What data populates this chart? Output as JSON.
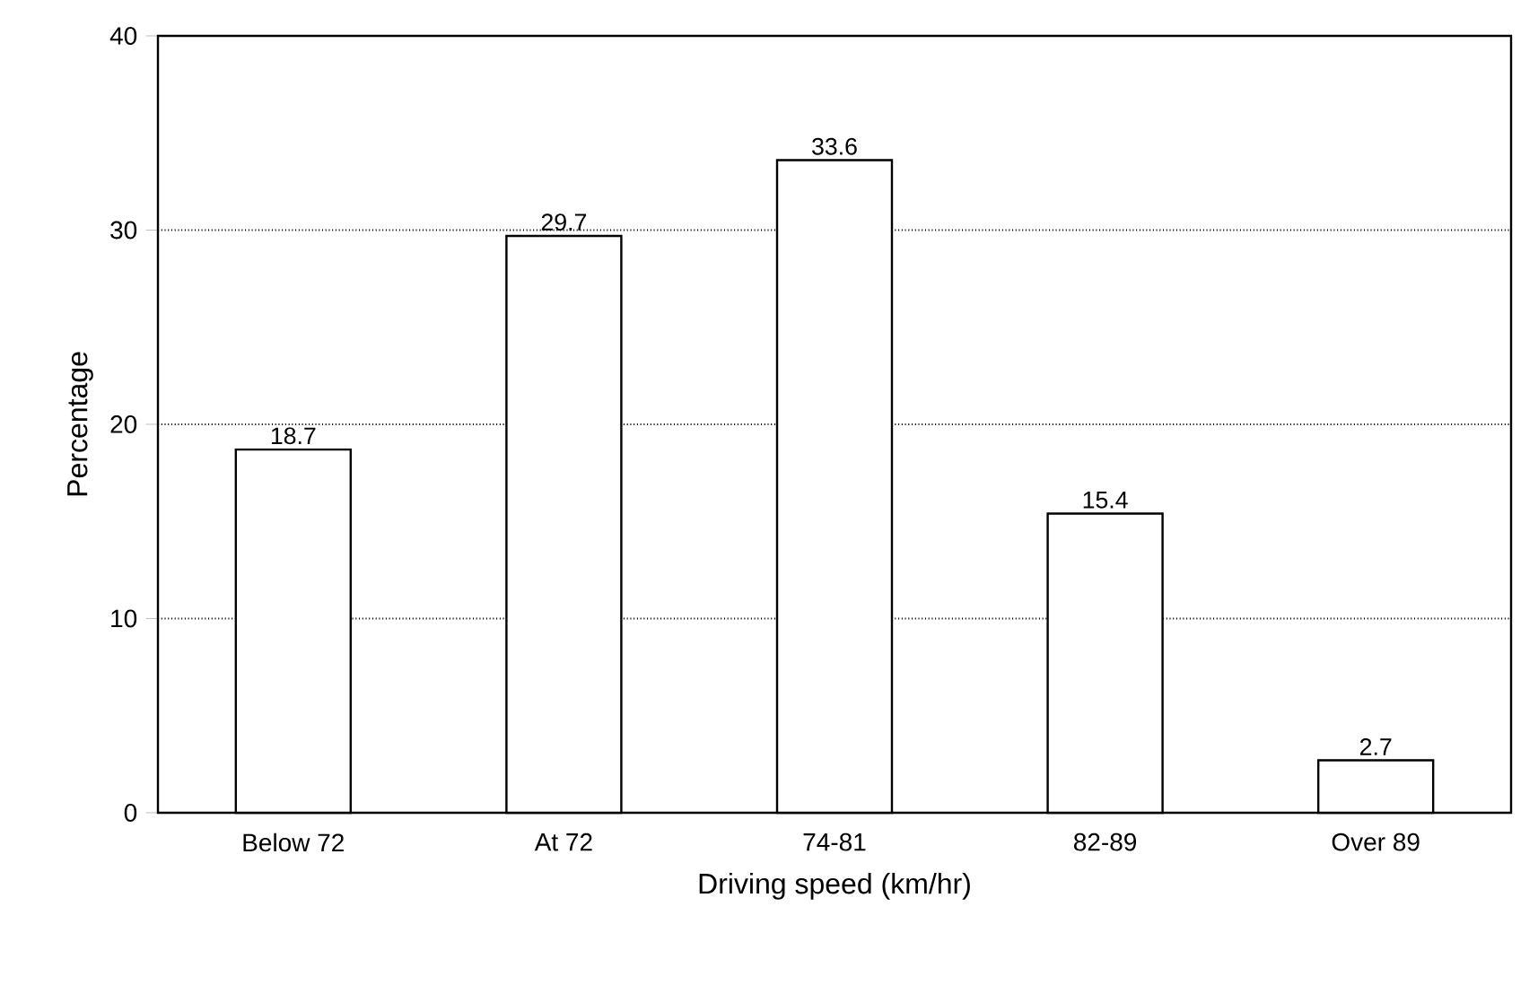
{
  "chart_data": {
    "type": "bar",
    "xlabel": "Driving speed (km/hr)",
    "ylabel": "Percentage",
    "categories": [
      "Below 72",
      "At 72",
      "74-81",
      "82-89",
      "Over 89"
    ],
    "values": [
      18.7,
      29.7,
      33.6,
      15.4,
      2.7
    ],
    "color": "#000000",
    "ylim": [
      0,
      40
    ],
    "yticks": [
      0,
      10,
      20,
      30,
      40
    ],
    "grid": "y",
    "data_labels": true
  }
}
